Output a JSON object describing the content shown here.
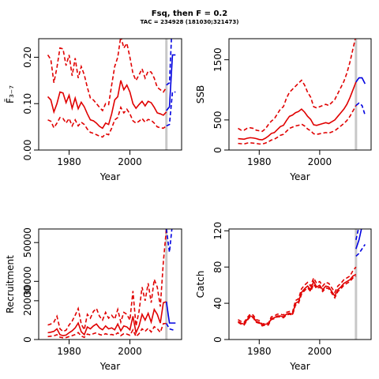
{
  "figure": {
    "title": "Fsq, then F = 0.2",
    "subtitle": "TAC = 234928 (181030;321473)"
  },
  "colors": {
    "history": "#e00000",
    "projection": "#0000e0",
    "marker": "#c8c8c8",
    "axis": "#000000"
  },
  "marker_year": 2012,
  "chart_data": [
    {
      "id": "fbar",
      "type": "line",
      "xlabel": "Year",
      "ylabel": "F̄₃₋₇",
      "xlim": [
        1970,
        2017
      ],
      "ylim": [
        0,
        0.24
      ],
      "xticks": [
        1980,
        2000
      ],
      "yticks": [
        0.0,
        0.1,
        0.2
      ],
      "ytick_labels": [
        "0.00",
        "0.10",
        "0.20"
      ],
      "history": {
        "x": [
          1973,
          1974,
          1975,
          1976,
          1977,
          1978,
          1979,
          1980,
          1981,
          1982,
          1983,
          1984,
          1985,
          1986,
          1987,
          1988,
          1989,
          1990,
          1991,
          1992,
          1993,
          1994,
          1995,
          1996,
          1997,
          1998,
          1999,
          2000,
          2001,
          2002,
          2003,
          2004,
          2005,
          2006,
          2007,
          2008,
          2009,
          2010,
          2011,
          2012
        ],
        "median": [
          0.115,
          0.108,
          0.082,
          0.1,
          0.125,
          0.123,
          0.102,
          0.118,
          0.09,
          0.112,
          0.089,
          0.103,
          0.093,
          0.078,
          0.065,
          0.063,
          0.058,
          0.051,
          0.047,
          0.058,
          0.055,
          0.078,
          0.108,
          0.115,
          0.15,
          0.13,
          0.14,
          0.125,
          0.1,
          0.09,
          0.098,
          0.105,
          0.095,
          0.105,
          0.102,
          0.092,
          0.08,
          0.078,
          0.075,
          0.082
        ],
        "lower": [
          0.065,
          0.062,
          0.048,
          0.058,
          0.07,
          0.068,
          0.058,
          0.068,
          0.052,
          0.065,
          0.052,
          0.06,
          0.055,
          0.045,
          0.038,
          0.036,
          0.033,
          0.03,
          0.028,
          0.035,
          0.033,
          0.047,
          0.065,
          0.07,
          0.092,
          0.08,
          0.088,
          0.078,
          0.063,
          0.058,
          0.062,
          0.068,
          0.06,
          0.066,
          0.064,
          0.058,
          0.05,
          0.048,
          0.047,
          0.052
        ],
        "upper": [
          0.205,
          0.195,
          0.145,
          0.178,
          0.22,
          0.218,
          0.182,
          0.205,
          0.16,
          0.198,
          0.155,
          0.18,
          0.162,
          0.135,
          0.112,
          0.108,
          0.1,
          0.092,
          0.085,
          0.1,
          0.098,
          0.14,
          0.18,
          0.2,
          0.245,
          0.22,
          0.23,
          0.2,
          0.165,
          0.15,
          0.162,
          0.175,
          0.155,
          0.17,
          0.168,
          0.155,
          0.135,
          0.13,
          0.125,
          0.135
        ]
      },
      "projection": {
        "x": [
          2012,
          2013,
          2014,
          2015
        ],
        "median": [
          0.085,
          0.093,
          0.205,
          0.205
        ],
        "lower": [
          0.052,
          0.055,
          0.125,
          0.125
        ],
        "upper": [
          0.14,
          0.145,
          0.29,
          0.29
        ]
      }
    },
    {
      "id": "ssb",
      "type": "line",
      "xlabel": "Year",
      "ylabel": "SSB",
      "xlim": [
        1970,
        2017
      ],
      "ylim": [
        0,
        1850
      ],
      "xticks": [
        1980,
        2000
      ],
      "yticks": [
        0,
        500,
        1500
      ],
      "ytick_labels": [
        "0",
        "500",
        "1500"
      ],
      "history": {
        "x": [
          1973,
          1974,
          1975,
          1976,
          1977,
          1978,
          1979,
          1980,
          1981,
          1982,
          1983,
          1984,
          1985,
          1986,
          1987,
          1988,
          1989,
          1990,
          1991,
          1992,
          1993,
          1994,
          1995,
          1996,
          1997,
          1998,
          1999,
          2000,
          2001,
          2002,
          2003,
          2004,
          2005,
          2006,
          2007,
          2008,
          2009,
          2010,
          2011,
          2012
        ],
        "median": [
          190,
          185,
          180,
          195,
          205,
          200,
          190,
          175,
          170,
          195,
          230,
          275,
          290,
          340,
          390,
          410,
          490,
          560,
          580,
          620,
          640,
          680,
          630,
          560,
          510,
          420,
          410,
          425,
          440,
          455,
          440,
          470,
          500,
          560,
          620,
          680,
          760,
          870,
          1000,
          1130
        ],
        "lower": [
          110,
          105,
          100,
          115,
          120,
          115,
          110,
          100,
          100,
          115,
          135,
          165,
          180,
          210,
          245,
          260,
          310,
          360,
          380,
          400,
          410,
          430,
          400,
          350,
          320,
          270,
          260,
          270,
          280,
          290,
          280,
          300,
          320,
          360,
          400,
          440,
          490,
          560,
          650,
          740
        ],
        "upper": [
          360,
          330,
          330,
          360,
          370,
          360,
          330,
          320,
          310,
          350,
          420,
          480,
          520,
          600,
          680,
          720,
          860,
          960,
          1010,
          1060,
          1110,
          1160,
          1080,
          960,
          880,
          720,
          700,
          720,
          740,
          760,
          740,
          790,
          840,
          940,
          1040,
          1140,
          1280,
          1460,
          1680,
          1900
        ]
      },
      "projection": {
        "x": [
          2012,
          2013,
          2014,
          2015
        ],
        "median": [
          1130,
          1200,
          1200,
          1100
        ],
        "lower": [
          740,
          780,
          740,
          580
        ],
        "upper": [
          1850,
          1950,
          2000,
          1900
        ]
      }
    },
    {
      "id": "recruitment",
      "type": "line",
      "xlabel": "Year",
      "ylabel": "Recruitment",
      "xlim": [
        1970,
        2017
      ],
      "ylim": [
        0,
        57000
      ],
      "xticks": [
        1980,
        2000
      ],
      "yticks": [
        0,
        20000,
        30000,
        50000
      ],
      "ytick_labels": [
        "0",
        "20000",
        "30000",
        "50000"
      ],
      "history": {
        "x": [
          1973,
          1974,
          1975,
          1976,
          1977,
          1978,
          1979,
          1980,
          1981,
          1982,
          1983,
          1984,
          1985,
          1986,
          1987,
          1988,
          1989,
          1990,
          1991,
          1992,
          1993,
          1994,
          1995,
          1996,
          1997,
          1998,
          1999,
          2000,
          2001,
          2002,
          2003,
          2004,
          2005,
          2006,
          2007,
          2008,
          2009,
          2010,
          2011,
          2012
        ],
        "median": [
          3500,
          3800,
          4200,
          5500,
          2500,
          2000,
          2300,
          3500,
          4500,
          6000,
          8500,
          4000,
          2500,
          6500,
          5500,
          7000,
          8000,
          6000,
          5000,
          7000,
          5500,
          6000,
          5000,
          8000,
          4500,
          7000,
          6500,
          5000,
          12000,
          3500,
          7000,
          13000,
          10000,
          13500,
          9000,
          15500,
          13000,
          8500,
          19000,
          19500
        ],
        "lower": [
          1500,
          1700,
          1900,
          2500,
          1200,
          900,
          1000,
          1500,
          2000,
          2600,
          3600,
          1800,
          1100,
          2800,
          2400,
          3000,
          3500,
          2600,
          2200,
          3000,
          2400,
          2600,
          2200,
          3500,
          2000,
          3000,
          2800,
          2200,
          5000,
          1500,
          3000,
          5500,
          4200,
          5800,
          3900,
          6600,
          5600,
          3700,
          8200,
          8300
        ],
        "upper": [
          7500,
          8000,
          9000,
          12000,
          5500,
          4200,
          4800,
          7500,
          9500,
          12500,
          16000,
          8000,
          5000,
          13000,
          11000,
          14500,
          16000,
          12000,
          10000,
          14000,
          11000,
          12500,
          10500,
          15500,
          9000,
          14000,
          13000,
          10000,
          25000,
          7000,
          14500,
          27000,
          20000,
          29000,
          19000,
          31000,
          27000,
          17000,
          40000,
          57000
        ]
      },
      "projection": {
        "x": [
          2012,
          2013,
          2014,
          2015
        ],
        "median": [
          19500,
          8500,
          8500,
          8500
        ],
        "lower": [
          8300,
          5500,
          5000,
          5000
        ],
        "upper": [
          57000,
          45000,
          60000,
          60000
        ]
      }
    },
    {
      "id": "catch",
      "type": "line",
      "xlabel": "Year",
      "ylabel": "Catch",
      "xlim": [
        1970,
        2017
      ],
      "ylim": [
        0,
        122
      ],
      "xticks": [
        1980,
        2000
      ],
      "yticks": [
        0,
        40,
        80,
        120
      ],
      "ytick_labels": [
        "0",
        "40",
        "80",
        "120"
      ],
      "history": {
        "x": [
          1973,
          1974,
          1975,
          1976,
          1977,
          1978,
          1979,
          1980,
          1981,
          1982,
          1983,
          1984,
          1985,
          1986,
          1987,
          1988,
          1989,
          1990,
          1991,
          1992,
          1993,
          1994,
          1995,
          1996,
          1997,
          1998,
          1999,
          2000,
          2001,
          2002,
          2003,
          2004,
          2005,
          2006,
          2007,
          2008,
          2009,
          2010,
          2011,
          2012
        ],
        "median": [
          20,
          18,
          17,
          22,
          26,
          25,
          20,
          19,
          16,
          17,
          17,
          23,
          24,
          26,
          26,
          25,
          28,
          29,
          28,
          40,
          42,
          52,
          56,
          59,
          55,
          64,
          58,
          60,
          55,
          59,
          58,
          53,
          48,
          55,
          58,
          62,
          64,
          66,
          70,
          72
        ],
        "lower": [
          19,
          17,
          16,
          21,
          25,
          24,
          19,
          18,
          15,
          16,
          16,
          22,
          23,
          25,
          25,
          24,
          27,
          28,
          27,
          38,
          40,
          50,
          54,
          57,
          53,
          61,
          56,
          58,
          53,
          57,
          56,
          51,
          46,
          53,
          56,
          60,
          62,
          64,
          68,
          70
        ],
        "upper": [
          22,
          20,
          19,
          24,
          28,
          27,
          22,
          21,
          17,
          18,
          18,
          25,
          26,
          28,
          28,
          27,
          30,
          31,
          30,
          43,
          45,
          56,
          60,
          63,
          59,
          68,
          62,
          64,
          59,
          63,
          62,
          57,
          52,
          59,
          62,
          66,
          68,
          70,
          76,
          80
        ]
      },
      "projection": {
        "x": [
          2012,
          2013,
          2014,
          2015
        ],
        "median": [
          100,
          110,
          125,
          130
        ],
        "lower": [
          92,
          95,
          100,
          105
        ],
        "upper": [
          110,
          125,
          140,
          150
        ]
      }
    }
  ]
}
